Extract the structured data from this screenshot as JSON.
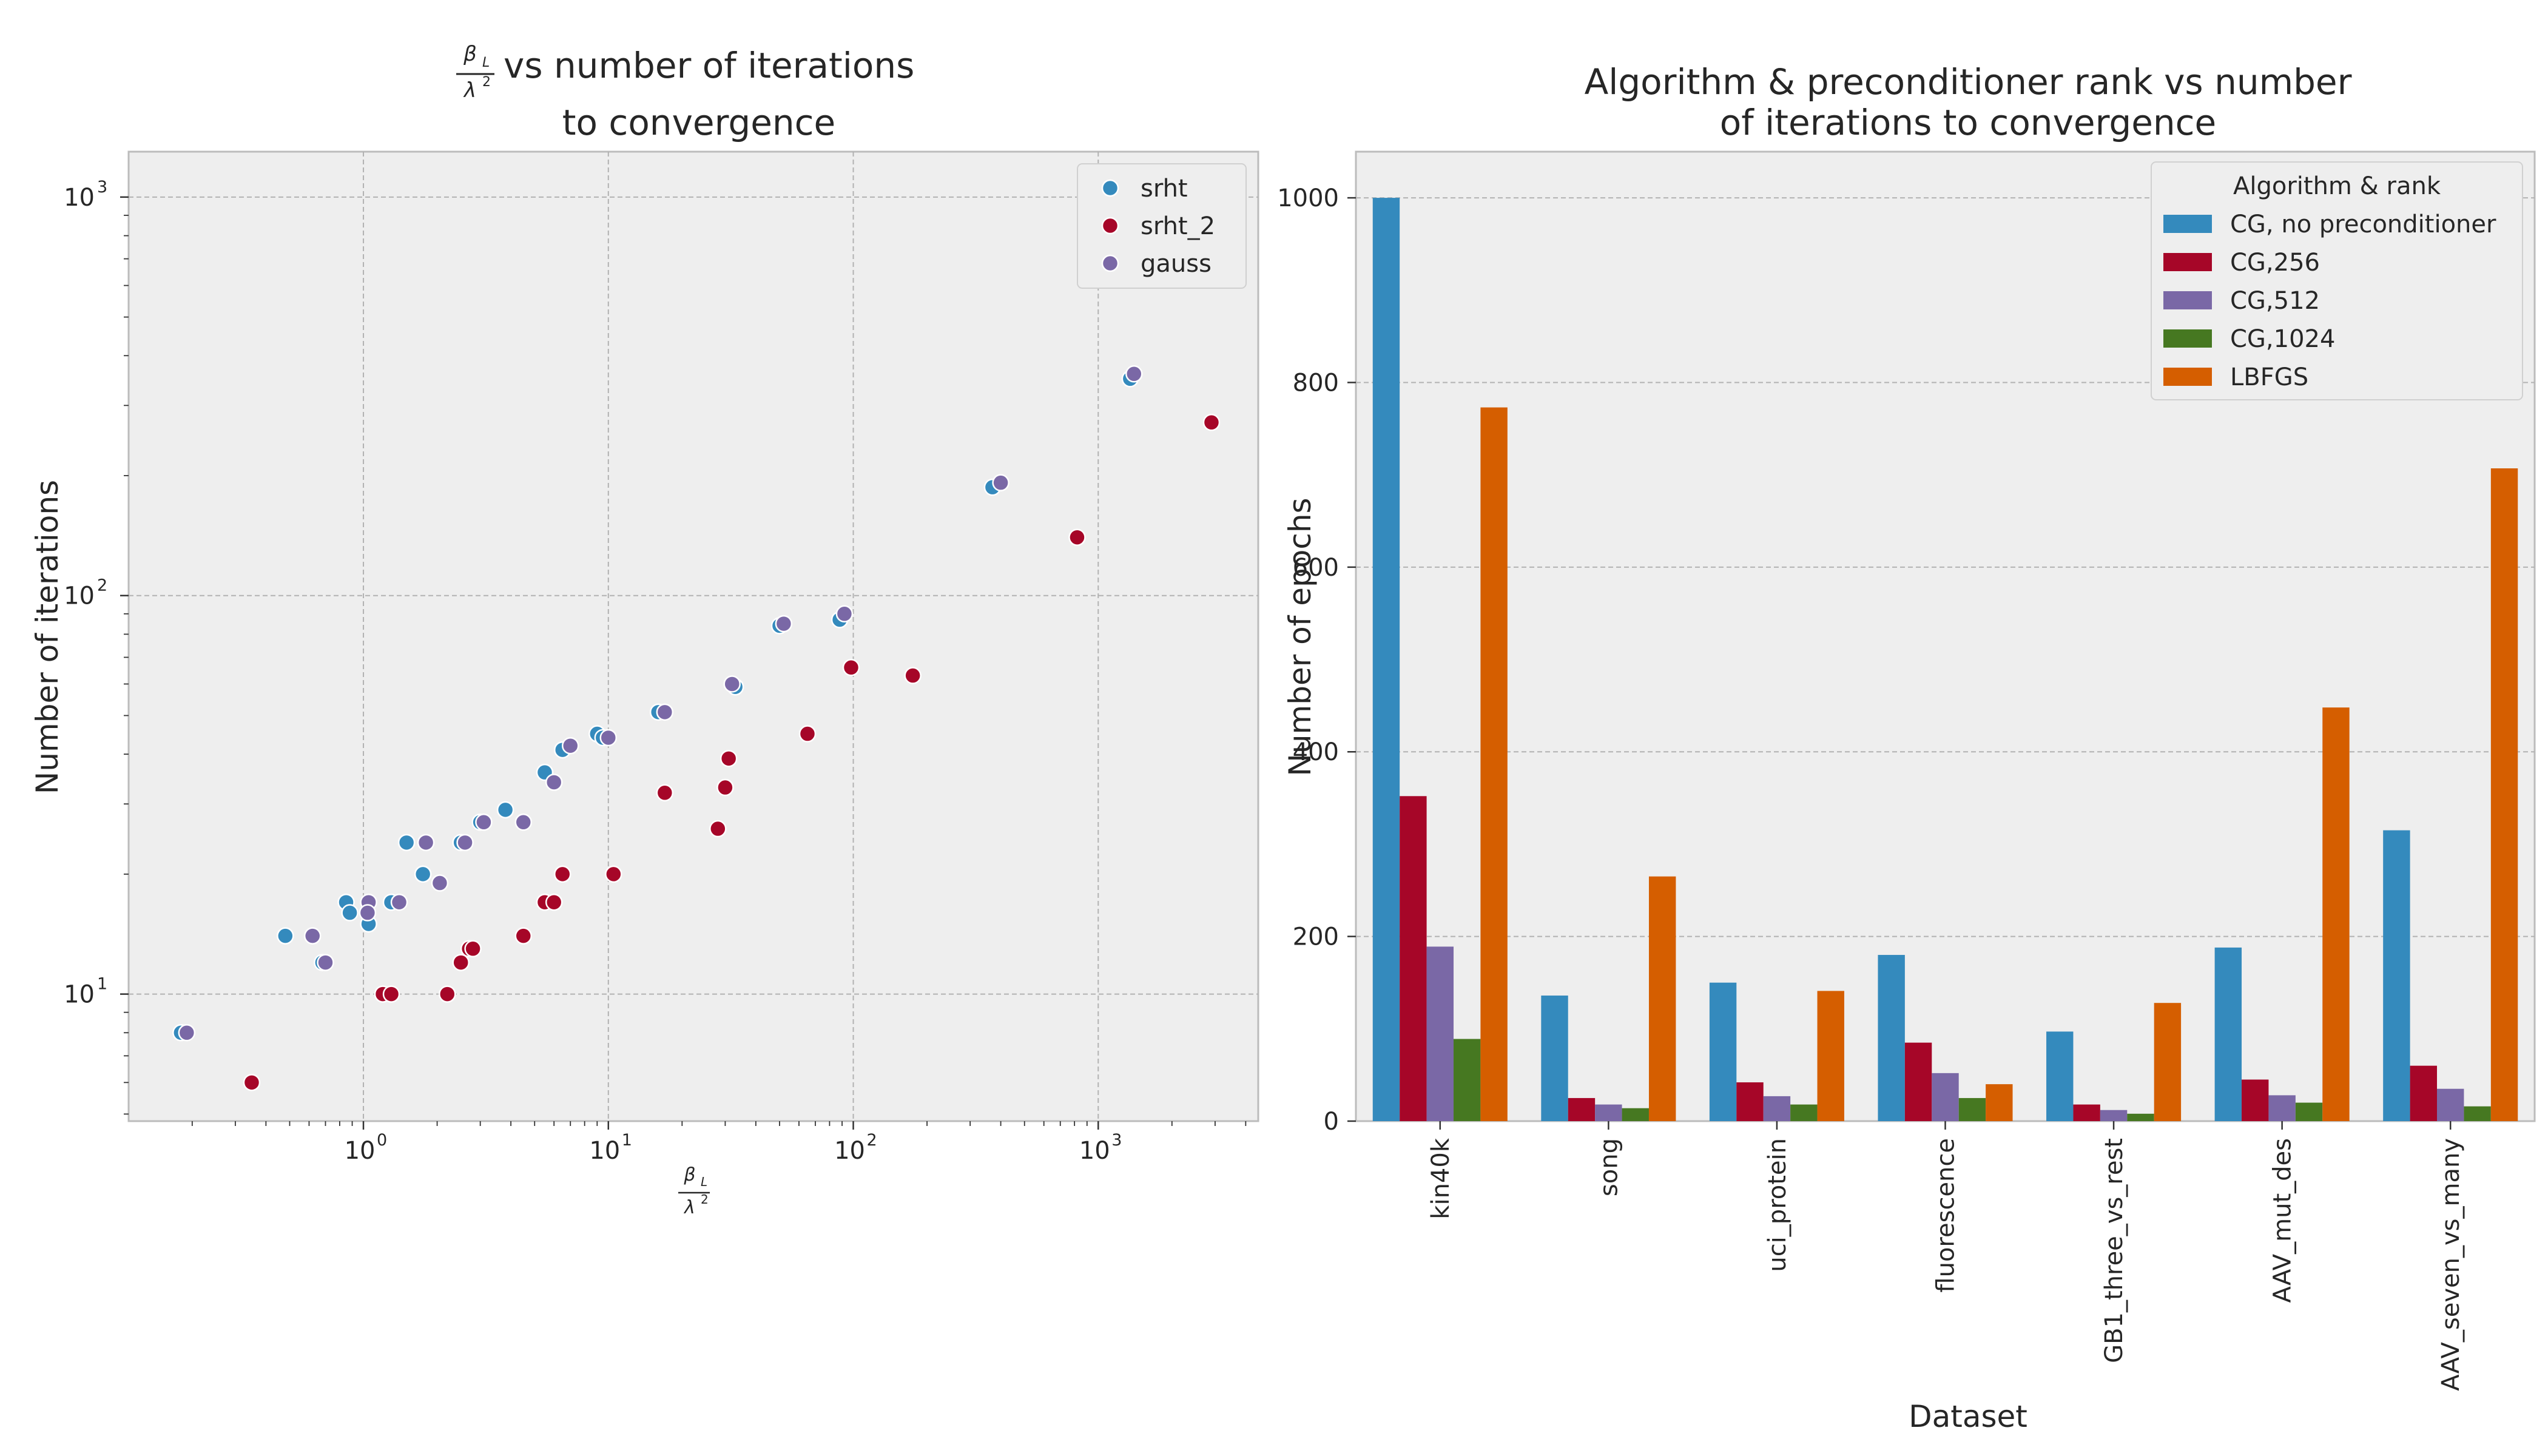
{
  "chart_data": [
    {
      "type": "scatter",
      "title_line1_suffix": "vs number of iterations",
      "title_line2": "to convergence",
      "ylabel": "Number of iterations",
      "xscale": "log",
      "yscale": "log",
      "xlim": [
        0.11,
        4500
      ],
      "ylim": [
        4.8,
        1300
      ],
      "x_tick_labels": [
        "10",
        "10",
        "10",
        "10"
      ],
      "x_tick_exponents": [
        "0",
        "1",
        "2",
        "3"
      ],
      "y_tick_labels": [
        "10",
        "10",
        "10"
      ],
      "y_tick_exponents": [
        "1",
        "2",
        "3"
      ],
      "grid": true,
      "legend_position": "upper-right",
      "series": [
        {
          "name": "srht",
          "color": "#348ABD",
          "points": [
            [
              0.18,
              8
            ],
            [
              0.48,
              14
            ],
            [
              0.68,
              12
            ],
            [
              0.85,
              17
            ],
            [
              0.88,
              16
            ],
            [
              1.05,
              15
            ],
            [
              1.3,
              17
            ],
            [
              1.5,
              24
            ],
            [
              1.75,
              20
            ],
            [
              2.5,
              24
            ],
            [
              3.0,
              27
            ],
            [
              3.8,
              29
            ],
            [
              5.5,
              36
            ],
            [
              6.5,
              41
            ],
            [
              9.0,
              45
            ],
            [
              9.5,
              44
            ],
            [
              16.0,
              51
            ],
            [
              33.0,
              59
            ],
            [
              50.0,
              84
            ],
            [
              88.0,
              87
            ],
            [
              370.0,
              187
            ],
            [
              1350.0,
              350
            ]
          ]
        },
        {
          "name": "srht_2",
          "color": "#A60628",
          "points": [
            [
              0.35,
              6
            ],
            [
              1.2,
              10
            ],
            [
              1.3,
              10
            ],
            [
              2.2,
              10
            ],
            [
              2.5,
              12
            ],
            [
              2.7,
              13
            ],
            [
              2.8,
              13
            ],
            [
              4.5,
              14
            ],
            [
              5.5,
              17
            ],
            [
              6.0,
              17
            ],
            [
              6.5,
              20
            ],
            [
              10.5,
              20
            ],
            [
              17.0,
              32
            ],
            [
              28.0,
              26
            ],
            [
              30.0,
              33
            ],
            [
              31.0,
              39
            ],
            [
              65.0,
              45
            ],
            [
              98.0,
              66
            ],
            [
              175.0,
              63
            ],
            [
              820.0,
              140
            ],
            [
              2900.0,
              272
            ]
          ]
        },
        {
          "name": "gauss",
          "color": "#7A68A6",
          "points": [
            [
              0.19,
              8
            ],
            [
              0.62,
              14
            ],
            [
              0.7,
              12
            ],
            [
              1.05,
              17
            ],
            [
              1.04,
              16
            ],
            [
              1.4,
              17
            ],
            [
              1.8,
              24
            ],
            [
              2.05,
              19
            ],
            [
              2.6,
              24
            ],
            [
              3.1,
              27
            ],
            [
              4.5,
              27
            ],
            [
              6.0,
              34
            ],
            [
              7.0,
              42
            ],
            [
              10.0,
              44
            ],
            [
              17.0,
              51
            ],
            [
              32.0,
              60
            ],
            [
              52.0,
              85
            ],
            [
              92.0,
              90
            ],
            [
              400.0,
              192
            ],
            [
              1400.0,
              360
            ]
          ]
        }
      ]
    },
    {
      "type": "bar",
      "title": "Algorithm & preconditioner rank vs number of iterations to convergence",
      "title_lines": [
        "Algorithm & preconditioner rank vs number",
        "of iterations to convergence"
      ],
      "xlabel": "Dataset",
      "ylabel": "Number of epochs",
      "ylim": [
        0,
        1050
      ],
      "y_ticks": [
        0,
        200,
        400,
        600,
        800,
        1000
      ],
      "grid": true,
      "legend_title": "Algorithm & rank",
      "legend_position": "upper-right",
      "categories": [
        "kin40k",
        "song",
        "uci_protein",
        "fluorescence",
        "GB1_three_vs_rest",
        "AAV_mut_des",
        "AAV_seven_vs_many"
      ],
      "series": [
        {
          "name": "CG, no preconditioner",
          "color": "#348ABD",
          "values": [
            1000,
            136,
            150,
            180,
            97,
            188,
            315
          ]
        },
        {
          "name": "CG,256",
          "color": "#A60628",
          "values": [
            352,
            25,
            42,
            85,
            18,
            45,
            60
          ]
        },
        {
          "name": "CG,512",
          "color": "#7A68A6",
          "values": [
            189,
            18,
            27,
            52,
            12,
            28,
            35
          ]
        },
        {
          "name": "CG,1024",
          "color": "#467821",
          "values": [
            89,
            14,
            18,
            25,
            8,
            20,
            16
          ]
        },
        {
          "name": "LBFGS",
          "color": "#D55E00",
          "values": [
            773,
            265,
            141,
            40,
            128,
            448,
            707
          ]
        }
      ]
    }
  ]
}
